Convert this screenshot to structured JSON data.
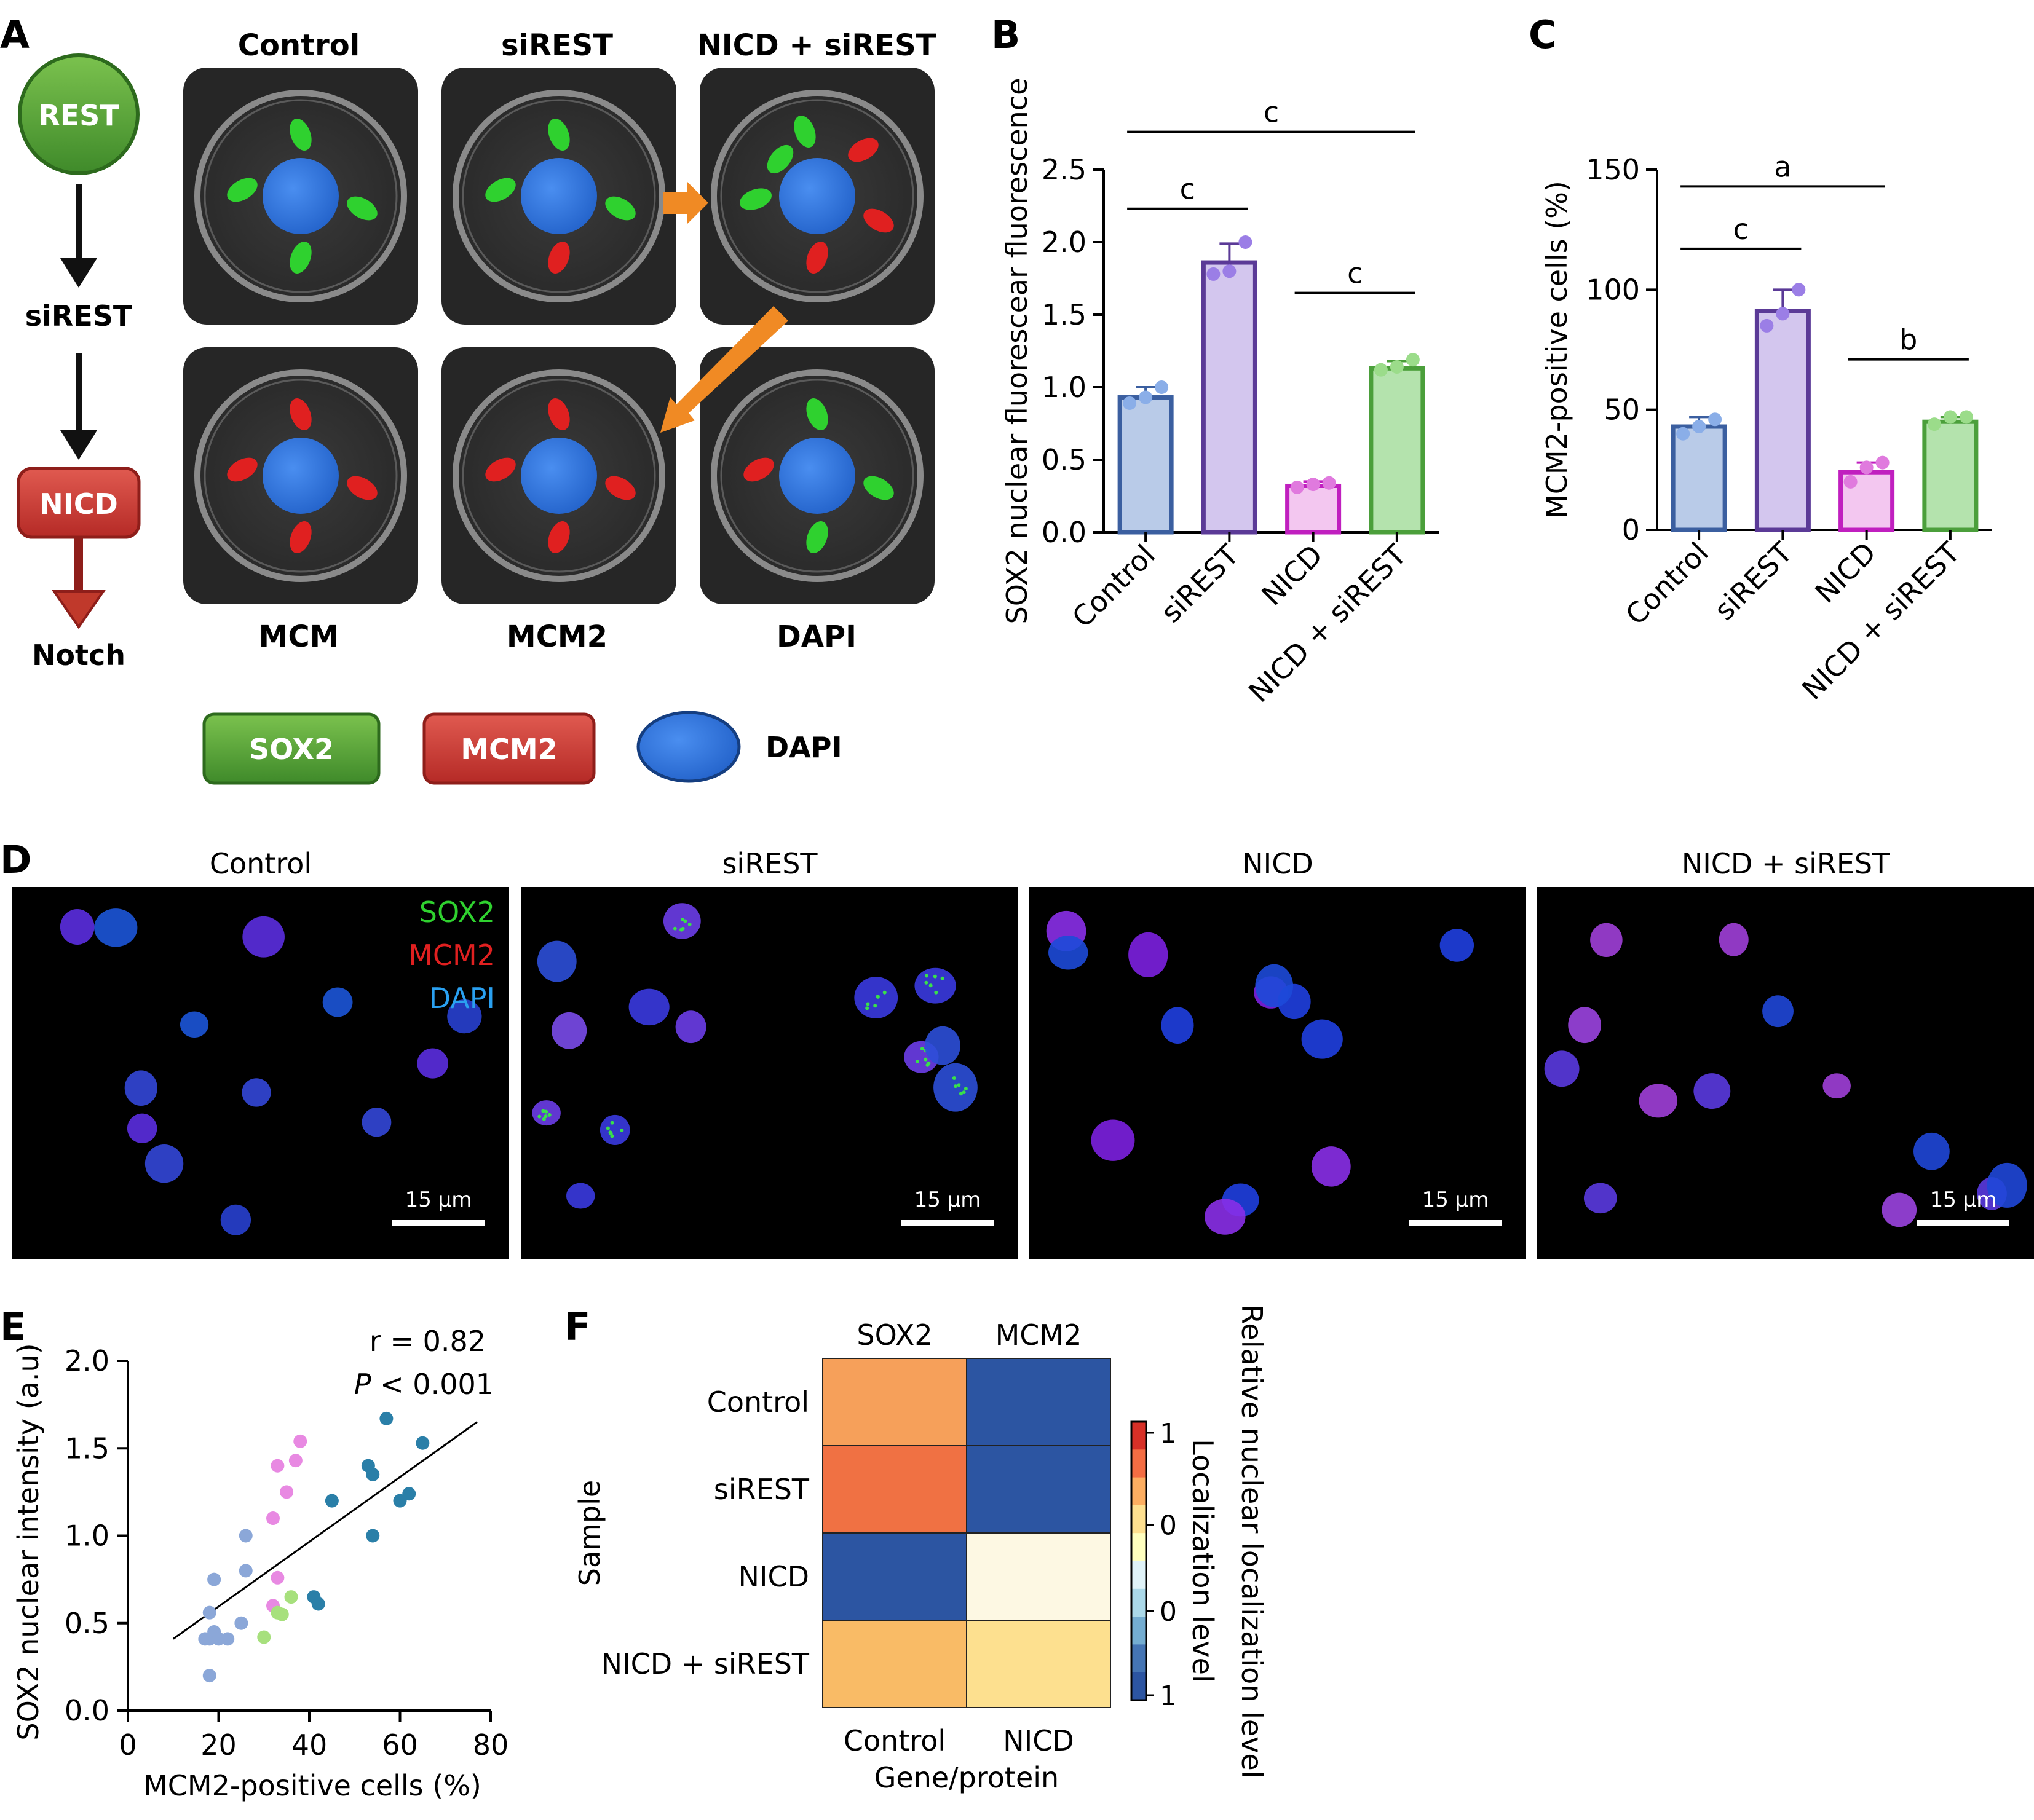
{
  "panel_letters": {
    "a": "A",
    "b": "B",
    "c": "C",
    "d": "D",
    "e": "E",
    "f": "F"
  },
  "colors": {
    "control": "#3b5fa0",
    "control_fill": "#b9cbe8",
    "sirest": "#5b3a97",
    "sirest_fill": "#d3c6ee",
    "nicd": "#c01fbf",
    "nicd_fill": "#f3c7f0",
    "nicd_sirest": "#4b9f3b",
    "nicd_sirest_fill": "#b4e3ad",
    "sox2": "#2fd12f",
    "mcm2": "#e02020",
    "dapi": "#1e6fe0",
    "arrow": "#f08a24"
  },
  "panel_a": {
    "pathway": {
      "rest": "REST",
      "sirest": "siREST",
      "nicd": "NICD",
      "notch": "Notch"
    },
    "top_titles": [
      "Control",
      "siREST",
      "NICD + siREST"
    ],
    "bottom_titles": [
      "MCM",
      "MCM2",
      "DAPI"
    ],
    "legend": {
      "sox2": "SOX2",
      "mcm2": "MCM2",
      "dapi": "DAPI"
    },
    "icons": {
      "cell": "cell-diagram-icon",
      "arrow": "orange-arrow-icon"
    }
  },
  "chart_data": [
    {
      "id": "B",
      "type": "bar",
      "categories": [
        "Control",
        "siREST",
        "NICD",
        "NICD + siREST"
      ],
      "values": [
        0.93,
        1.86,
        0.32,
        1.13
      ],
      "error": [
        0.07,
        0.13,
        0.03,
        0.05
      ],
      "points": [
        [
          0.89,
          0.93,
          1.0
        ],
        [
          1.78,
          1.8,
          2.0
        ],
        [
          0.31,
          0.33,
          0.34
        ],
        [
          1.12,
          1.14,
          1.19
        ]
      ],
      "ylabel": "SOX2 nuclear fluorescear fluorescence",
      "ylim": [
        0,
        2.5
      ],
      "yticks": [
        "0.0",
        "0.5",
        "1.0",
        "1.5",
        "2.0",
        "2.5"
      ],
      "significance": [
        {
          "from": 0,
          "to": 1,
          "label": "c",
          "level": 2.23
        },
        {
          "from": 0,
          "to": 3,
          "label": "c",
          "level": 2.76
        },
        {
          "from": 2,
          "to": 3,
          "label": "c",
          "level": 1.65
        }
      ]
    },
    {
      "id": "C",
      "type": "bar",
      "categories": [
        "Control",
        "siREST",
        "NICD",
        "NICD + siREST"
      ],
      "values": [
        43,
        91,
        24,
        45
      ],
      "error": [
        4,
        9,
        4,
        2
      ],
      "points": [
        [
          40,
          43,
          46
        ],
        [
          85,
          90,
          100
        ],
        [
          20,
          26,
          28
        ],
        [
          44,
          47,
          47
        ]
      ],
      "ylabel": "MCM2-positive cells (%)",
      "ylim": [
        0,
        150
      ],
      "yticks": [
        "0",
        "50",
        "100",
        "150"
      ],
      "significance": [
        {
          "from": 0,
          "to": 1,
          "label": "c",
          "level": 117
        },
        {
          "from": 0,
          "to": 2,
          "label": "a",
          "level": 143
        },
        {
          "from": 2,
          "to": 3,
          "label": "b",
          "level": 71
        }
      ]
    },
    {
      "id": "E",
      "type": "scatter",
      "xlabel": "MCM2-positive cells (%)",
      "ylabel": "SOX2 nuclear intensity (a.u)",
      "xlim": [
        0,
        80
      ],
      "ylim": [
        0,
        2.0
      ],
      "xticks": [
        "0",
        "20",
        "40",
        "60",
        "80"
      ],
      "yticks": [
        "0.0",
        "0.5",
        "1.0",
        "1.5",
        "2.0"
      ],
      "annotation_r": "r = 0.82",
      "annotation_p_italic": "P",
      "annotation_p_rest": " < 0.001",
      "fit": {
        "x": [
          10,
          77
        ],
        "y": [
          0.41,
          1.65
        ]
      },
      "series": [
        {
          "color": "#8ba7d8",
          "points": [
            [
              18,
              0.2
            ],
            [
              18,
              0.41
            ],
            [
              18,
              0.56
            ],
            [
              19,
              0.45
            ],
            [
              19,
              0.75
            ],
            [
              20,
              0.41
            ],
            [
              22,
              0.41
            ],
            [
              25,
              0.5
            ],
            [
              26,
              0.8
            ],
            [
              26,
              1.0
            ],
            [
              17,
              0.41
            ]
          ]
        },
        {
          "color": "#2a7fa8",
          "points": [
            [
              41,
              0.65
            ],
            [
              42,
              0.61
            ],
            [
              45,
              1.2
            ],
            [
              53,
              1.4
            ],
            [
              54,
              1.35
            ],
            [
              54,
              1.0
            ],
            [
              57,
              1.67
            ],
            [
              60,
              1.2
            ],
            [
              62,
              1.24
            ],
            [
              65,
              1.53
            ]
          ]
        },
        {
          "color": "#e889e2",
          "points": [
            [
              32,
              0.6
            ],
            [
              32,
              1.1
            ],
            [
              33,
              1.4
            ],
            [
              33,
              0.76
            ],
            [
              35,
              1.25
            ],
            [
              37,
              1.43
            ],
            [
              38,
              1.54
            ]
          ]
        },
        {
          "color": "#a7e07d",
          "points": [
            [
              30,
              0.42
            ],
            [
              33,
              0.56
            ],
            [
              34,
              0.55
            ],
            [
              36,
              0.65
            ]
          ]
        }
      ]
    },
    {
      "id": "F",
      "type": "heatmap",
      "columns": [
        "SOX2",
        "MCM2"
      ],
      "rows": [
        "Control",
        "siREST",
        "NICD",
        "NICD + siREST"
      ],
      "cell_colors": [
        [
          "#f6a05a",
          "#2c55a2"
        ],
        [
          "#f07143",
          "#2c55a2"
        ],
        [
          "#2c55a2",
          "#fdf8e3"
        ],
        [
          "#f9bb66",
          "#fde08f"
        ]
      ],
      "bottom_labels": [
        "Control",
        "NICD"
      ],
      "xlabel": "Gene/protein",
      "ylabel": "Sample",
      "colorbar": {
        "ticks": [
          "1",
          "0",
          "0",
          "1"
        ],
        "label_inner": "Localization level",
        "label_outer": "Relative nuclear localization level"
      }
    }
  ],
  "panel_d": {
    "titles": [
      "Control",
      "siREST",
      "NICD",
      "NICD + siREST"
    ],
    "legend": [
      "SOX2",
      "MCM2",
      "DAPI"
    ],
    "scale_bar": "15 μm"
  }
}
